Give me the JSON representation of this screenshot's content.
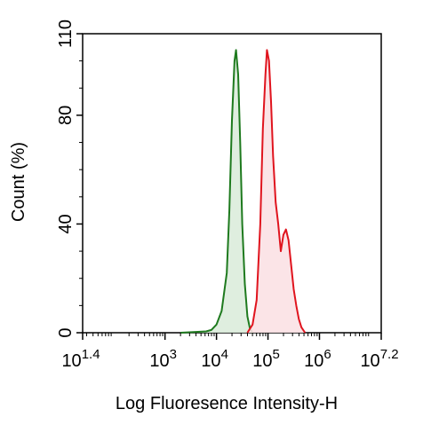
{
  "chart_data": {
    "type": "area",
    "title": "",
    "xlabel": "Log Fluoresence Intensity-H",
    "ylabel": "Count  (%)",
    "x_scale": "log10",
    "xlim": [
      1.4,
      7.2
    ],
    "ylim": [
      0,
      110
    ],
    "grid": false,
    "legend": "none",
    "x_ticks": [
      {
        "base": "10",
        "exp": "1.4",
        "value": 1.4
      },
      {
        "base": "10",
        "exp": "3",
        "value": 3
      },
      {
        "base": "10",
        "exp": "4",
        "value": 4
      },
      {
        "base": "10",
        "exp": "5",
        "value": 5
      },
      {
        "base": "10",
        "exp": "6",
        "value": 6
      },
      {
        "base": "10",
        "exp": "7.2",
        "value": 7.2
      }
    ],
    "y_ticks": [
      {
        "label": "0",
        "value": 0
      },
      {
        "label": "40",
        "value": 40
      },
      {
        "label": "80",
        "value": 80
      },
      {
        "label": "110",
        "value": 110
      }
    ],
    "series": [
      {
        "color": "#1e7a1e",
        "fill": "#dcecdc",
        "x": [
          3.3,
          3.6,
          3.8,
          3.9,
          4.0,
          4.1,
          4.2,
          4.25,
          4.3,
          4.35,
          4.38,
          4.42,
          4.46,
          4.5,
          4.55,
          4.6,
          4.65,
          4.7
        ],
        "y": [
          0,
          0.3,
          0.5,
          1,
          3,
          8,
          22,
          45,
          78,
          100,
          104,
          95,
          70,
          40,
          18,
          6,
          1.5,
          0
        ]
      },
      {
        "color": "#e0141e",
        "fill": "#fbe1e4",
        "x": [
          4.6,
          4.7,
          4.78,
          4.85,
          4.9,
          4.95,
          4.98,
          5.02,
          5.06,
          5.1,
          5.15,
          5.2,
          5.25,
          5.3,
          5.35,
          5.4,
          5.45,
          5.5,
          5.55,
          5.6,
          5.65,
          5.72
        ],
        "y": [
          0,
          3,
          12,
          40,
          75,
          95,
          104,
          100,
          85,
          65,
          48,
          40,
          30,
          36,
          38,
          34,
          25,
          16,
          10,
          5,
          2,
          0
        ]
      }
    ]
  }
}
